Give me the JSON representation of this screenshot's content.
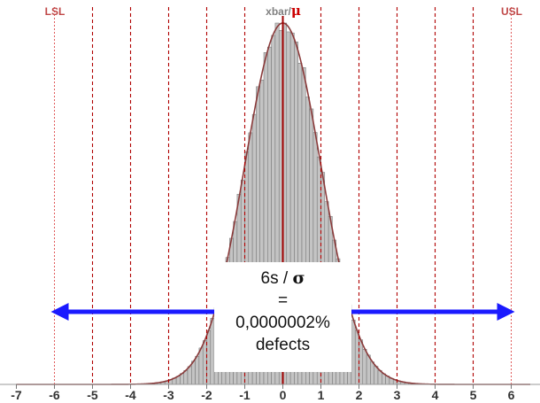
{
  "chart_data": {
    "type": "histogram",
    "distribution": "standard normal",
    "xlim": [
      -7,
      6.5
    ],
    "xticks": [
      -7,
      -6,
      -5,
      -4,
      -3,
      -2,
      -1,
      0,
      1,
      2,
      3,
      4,
      5,
      6
    ],
    "bin_width": 0.1,
    "sigma_lines": [
      -6,
      -5,
      -4,
      -3,
      -2,
      -1,
      1,
      2,
      3,
      4,
      5,
      6
    ],
    "mean_line": 0,
    "spec_limits": {
      "LSL": -6,
      "USL": 6
    },
    "labels": {
      "lsl": "LSL",
      "usl": "USL",
      "mean_prefix": "xbar/",
      "mean_symbol": "μ"
    },
    "arrow": {
      "from": -6,
      "to": 6
    },
    "annotation": {
      "line1": "6s / ",
      "line1_symbol": "σ",
      "line2": "=",
      "line3": "0,0000002%",
      "line4": "defects"
    }
  },
  "colors": {
    "limit_line": "#e05a5a",
    "sigma_line": "#b00000",
    "mean_line": "#a00000",
    "bars_fill": "#c4c4c4",
    "bars_stroke": "#6e6e6e",
    "curve": "#8a3a3a",
    "arrow": "#1a1aff",
    "axis_text": "#333333",
    "limit_text": "#c04848",
    "mean_prefix_text": "#808080",
    "mean_symbol_text": "#cc0000"
  }
}
